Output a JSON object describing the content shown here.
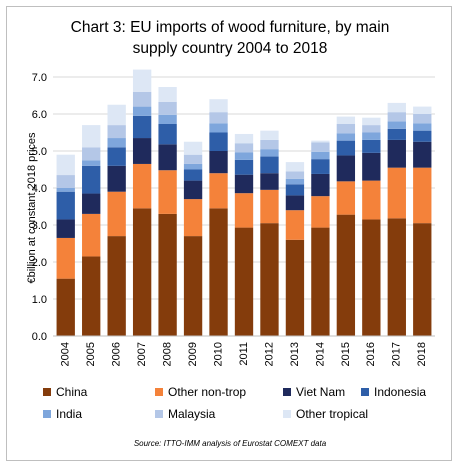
{
  "chart_data": {
    "type": "bar",
    "stacked": true,
    "title_line1": "Chart 3: EU imports of wood furniture, by main",
    "title_line2": "supply country 2004 to 2018",
    "ylabel": "€billion at constant 2018 prices",
    "xlabel": "",
    "ylim": [
      0,
      7
    ],
    "yticks": [
      "0.0",
      "1.0",
      "2.0",
      "3.0",
      "4.0",
      "5.0",
      "6.0",
      "7.0"
    ],
    "grid": true,
    "legend_position": "bottom",
    "categories": [
      "2004",
      "2005",
      "2006",
      "2007",
      "2008",
      "2009",
      "2010",
      "2011",
      "2012",
      "2013",
      "2014",
      "2015",
      "2016",
      "2017",
      "2018"
    ],
    "series": [
      {
        "name": "China",
        "color": "#843c0c",
        "values": [
          1.55,
          2.15,
          2.7,
          3.45,
          3.3,
          2.7,
          3.45,
          2.93,
          3.05,
          2.6,
          2.93,
          3.28,
          3.15,
          3.18,
          3.05
        ]
      },
      {
        "name": "Other non-trop",
        "color": "#f4823a",
        "values": [
          1.1,
          1.15,
          1.2,
          1.2,
          1.18,
          1.0,
          0.95,
          0.93,
          0.9,
          0.8,
          0.85,
          0.9,
          1.05,
          1.37,
          1.5
        ]
      },
      {
        "name": "Viet Nam",
        "color": "#1f2a5c",
        "values": [
          0.5,
          0.55,
          0.7,
          0.7,
          0.7,
          0.5,
          0.6,
          0.5,
          0.45,
          0.4,
          0.6,
          0.7,
          0.75,
          0.75,
          0.7
        ]
      },
      {
        "name": "Indonesia",
        "color": "#2e5ea8",
        "values": [
          0.75,
          0.75,
          0.5,
          0.6,
          0.55,
          0.3,
          0.5,
          0.4,
          0.45,
          0.3,
          0.4,
          0.4,
          0.35,
          0.3,
          0.3
        ]
      },
      {
        "name": "India",
        "color": "#7ea6dc",
        "values": [
          0.1,
          0.15,
          0.25,
          0.25,
          0.25,
          0.15,
          0.25,
          0.2,
          0.2,
          0.15,
          0.2,
          0.2,
          0.2,
          0.2,
          0.2
        ]
      },
      {
        "name": "Malaysia",
        "color": "#b4c7e7",
        "values": [
          0.35,
          0.35,
          0.35,
          0.4,
          0.35,
          0.25,
          0.3,
          0.25,
          0.25,
          0.2,
          0.25,
          0.25,
          0.2,
          0.25,
          0.25
        ]
      },
      {
        "name": "Other tropical",
        "color": "#dde7f5",
        "values": [
          0.55,
          0.6,
          0.55,
          0.6,
          0.4,
          0.35,
          0.35,
          0.25,
          0.25,
          0.25,
          0.05,
          0.2,
          0.2,
          0.25,
          0.2
        ]
      }
    ],
    "source": "Source: ITTO-IMM analysis of Eurostat COMEXT data"
  }
}
